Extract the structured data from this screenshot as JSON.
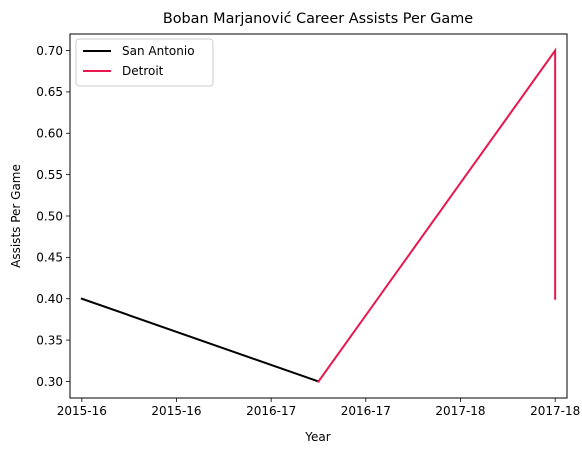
{
  "chart_data": {
    "type": "line",
    "title": "Boban Marjanović Career Assists Per Game",
    "xlabel": "Year",
    "ylabel": "Assists Per Game",
    "x_tick_labels": [
      "2015-16",
      "2015-16",
      "2016-17",
      "2016-17",
      "2017-18",
      "2017-18"
    ],
    "y_ticks": [
      "0.30",
      "0.35",
      "0.40",
      "0.45",
      "0.50",
      "0.55",
      "0.60",
      "0.65",
      "0.70"
    ],
    "ylim": [
      0.28,
      0.72
    ],
    "xlim": [
      -0.05,
      2.05
    ],
    "grid": false,
    "legend_position": "top-left",
    "series": [
      {
        "name": "San Antonio",
        "color": "#000000",
        "x": [
          0,
          1
        ],
        "y": [
          0.4,
          0.3
        ]
      },
      {
        "name": "Detroit",
        "color": "#e8174d",
        "x": [
          1,
          2,
          2
        ],
        "y": [
          0.3,
          0.7,
          0.4
        ]
      }
    ]
  }
}
